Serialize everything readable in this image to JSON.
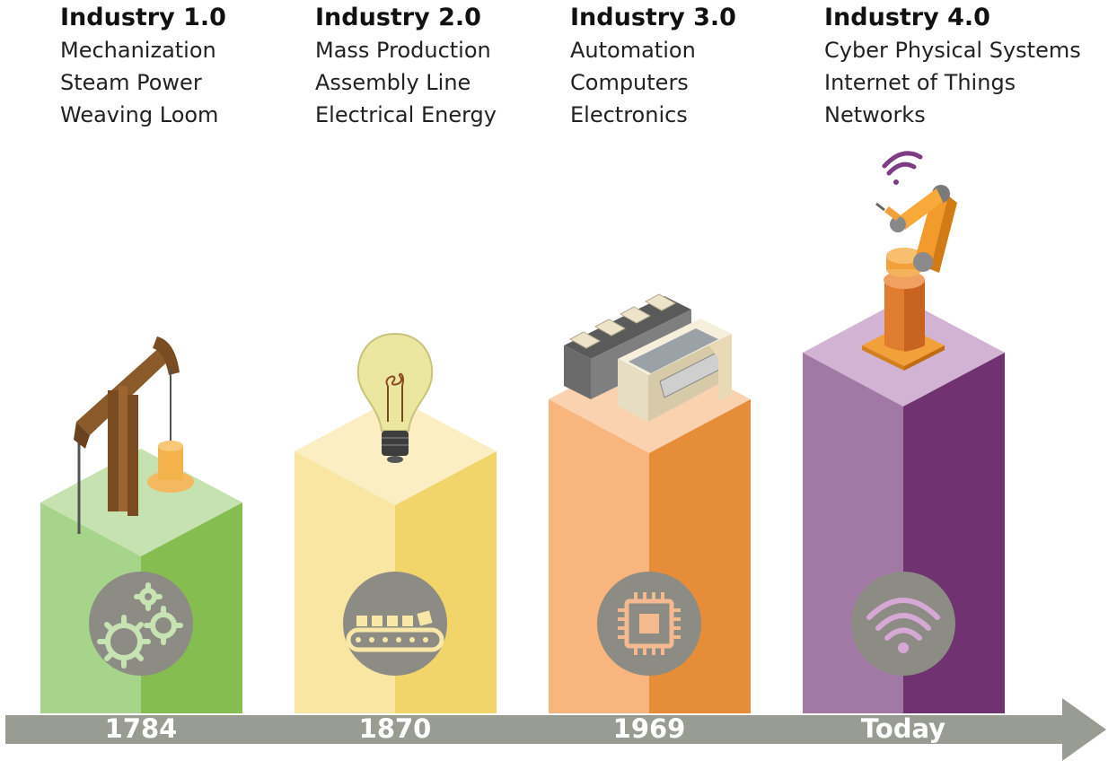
{
  "stages": [
    {
      "title": "Industry 1.0",
      "items": [
        "Mechanization",
        "Steam Power",
        "Weaving Loom"
      ],
      "year": "1784",
      "colors": {
        "top": "#c5e2b0",
        "left": "#a6d48a",
        "right": "#86bd51",
        "icon": "#c8e3b3"
      },
      "icon": "gears-icon",
      "illustration": "steam-pump-illustration"
    },
    {
      "title": "Industry 2.0",
      "items": [
        "Mass Production",
        "Assembly Line",
        "Electrical Energy"
      ],
      "year": "1870",
      "colors": {
        "top": "#fbeec3",
        "left": "#f9e6a3",
        "right": "#f1d56b",
        "icon": "#f8e7a6"
      },
      "icon": "conveyor-belt-icon",
      "illustration": "light-bulb-illustration"
    },
    {
      "title": "Industry 3.0",
      "items": [
        "Automation",
        "Computers",
        "Electronics"
      ],
      "year": "1969",
      "colors": {
        "top": "#fbd2b0",
        "left": "#f8b57d",
        "right": "#e68d3a",
        "icon": "#f5b990"
      },
      "icon": "microchip-icon",
      "illustration": "computer-console-illustration"
    },
    {
      "title": "Industry 4.0",
      "items": [
        "Cyber Physical Systems",
        "Internet of Things",
        "Networks"
      ],
      "year": "Today",
      "colors": {
        "top": "#d2b3d3",
        "left": "#a278a5",
        "right": "#703270",
        "icon": "#d6a8d5"
      },
      "icon": "wifi-icon",
      "illustration": "robot-arm-illustration"
    }
  ],
  "timeline": {
    "color": "#999c92"
  },
  "icon_circle_color": "#8c8c84"
}
